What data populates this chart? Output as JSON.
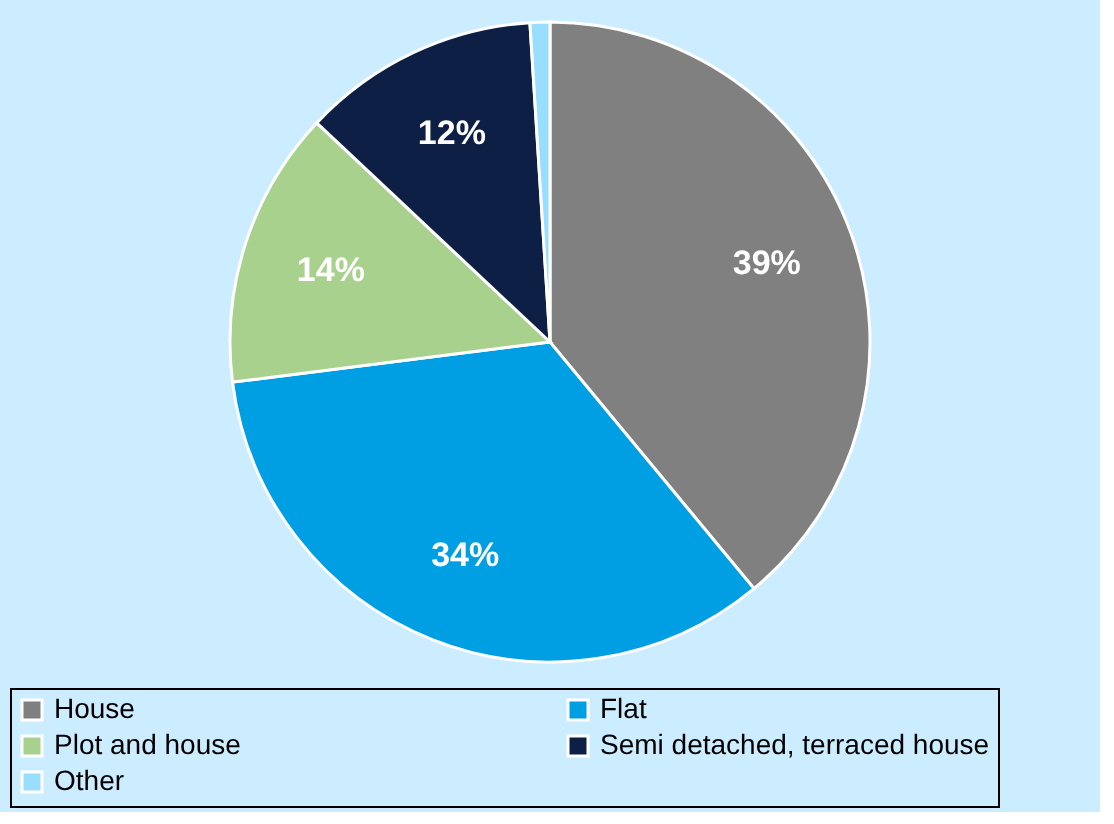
{
  "chart_data": {
    "type": "pie",
    "categories": [
      "House",
      "Flat",
      "Plot and house",
      "Semi detached, terraced house",
      "Other"
    ],
    "values": [
      39,
      34,
      14,
      12,
      1
    ],
    "colors": [
      "#808080",
      "#009fe3",
      "#a9d18e",
      "#0e1f45",
      "#99ddff"
    ],
    "value_labels": [
      "39%",
      "34%",
      "14%",
      "12%",
      null
    ],
    "legend": "bottom"
  }
}
